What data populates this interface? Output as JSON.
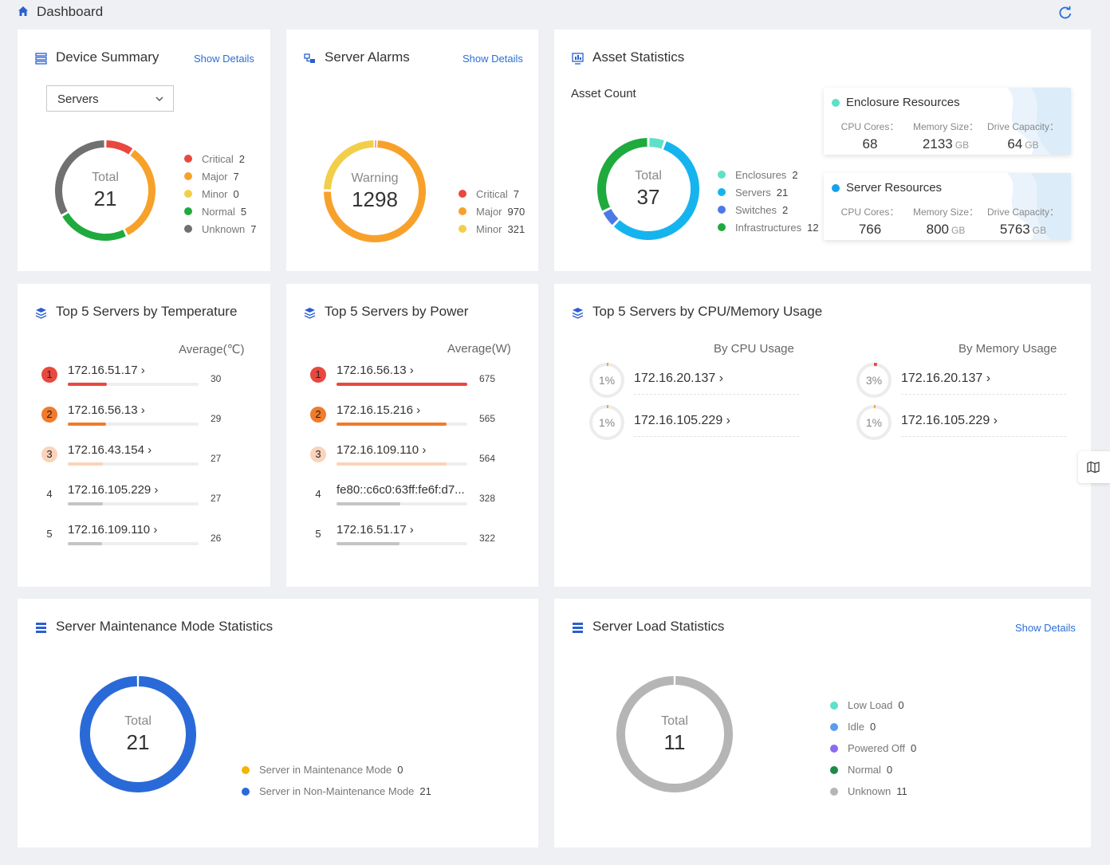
{
  "header": {
    "title": "Dashboard",
    "home_icon": "home-icon",
    "refresh_icon": "refresh-icon"
  },
  "device_summary": {
    "title": "Device Summary",
    "show_details": "Show Details",
    "dropdown_value": "Servers",
    "donut": {
      "label": "Total",
      "value": "21"
    },
    "legend": [
      {
        "label": "Critical",
        "value": "2",
        "color": "#e8483f"
      },
      {
        "label": "Major",
        "value": "7",
        "color": "#f7a12b"
      },
      {
        "label": "Minor",
        "value": "0",
        "color": "#f2cf4a"
      },
      {
        "label": "Normal",
        "value": "5",
        "color": "#1faa3e"
      },
      {
        "label": "Unknown",
        "value": "7",
        "color": "#707070"
      }
    ]
  },
  "server_alarms": {
    "title": "Server Alarms",
    "show_details": "Show Details",
    "donut": {
      "label": "Warning",
      "value": "1298"
    },
    "legend": [
      {
        "label": "Critical",
        "value": "7",
        "color": "#e8483f"
      },
      {
        "label": "Major",
        "value": "970",
        "color": "#f7a12b"
      },
      {
        "label": "Minor",
        "value": "321",
        "color": "#f2cf4a"
      }
    ]
  },
  "asset_statistics": {
    "title": "Asset Statistics",
    "subtitle": "Asset Count",
    "donut": {
      "label": "Total",
      "value": "37"
    },
    "legend": [
      {
        "label": "Enclosures",
        "value": "2",
        "color": "#5fe0c8"
      },
      {
        "label": "Servers",
        "value": "21",
        "color": "#16b4ee"
      },
      {
        "label": "Switches",
        "value": "2",
        "color": "#4d79e6"
      },
      {
        "label": "Infrastructures",
        "value": "12",
        "color": "#1faa3e"
      }
    ],
    "enclosure_resources": {
      "title": "Enclosure Resources",
      "color": "#5fe0c8",
      "cpu_label": "CPU Cores：",
      "cpu_value": "68",
      "mem_label": "Memory Size：",
      "mem_value": "2133",
      "mem_unit": "GB",
      "drive_label": "Drive Capacity：",
      "drive_value": "64",
      "drive_unit": "GB"
    },
    "server_resources": {
      "title": "Server Resources",
      "color": "#16a0f0",
      "cpu_label": "CPU Cores：",
      "cpu_value": "766",
      "mem_label": "Memory Size：",
      "mem_value": "800",
      "mem_unit": "GB",
      "drive_label": "Drive Capacity：",
      "drive_value": "5763",
      "drive_unit": "GB"
    }
  },
  "top_temperature": {
    "title": "Top 5 Servers by Temperature",
    "column": "Average(℃)",
    "rows": [
      {
        "rank": "1",
        "ip": "172.16.51.17 ›",
        "value": "30",
        "level": 0.3
      },
      {
        "rank": "2",
        "ip": "172.16.56.13 ›",
        "value": "29",
        "level": 0.29
      },
      {
        "rank": "3",
        "ip": "172.16.43.154 ›",
        "value": "27",
        "level": 0.27
      },
      {
        "rank": "4",
        "ip": "172.16.105.229 ›",
        "value": "27",
        "level": 0.27
      },
      {
        "rank": "5",
        "ip": "172.16.109.110 ›",
        "value": "26",
        "level": 0.26
      }
    ]
  },
  "top_power": {
    "title": "Top 5 Servers by Power",
    "column": "Average(W)",
    "rows": [
      {
        "rank": "1",
        "ip": "172.16.56.13 ›",
        "value": "675",
        "level": 1.0
      },
      {
        "rank": "2",
        "ip": "172.16.15.216 ›",
        "value": "565",
        "level": 0.84
      },
      {
        "rank": "3",
        "ip": "172.16.109.110 ›",
        "value": "564",
        "level": 0.84
      },
      {
        "rank": "4",
        "ip": "fe80::c6c0:63ff:fe6f:d7...",
        "value": "328",
        "level": 0.49
      },
      {
        "rank": "5",
        "ip": "172.16.51.17 ›",
        "value": "322",
        "level": 0.48
      }
    ]
  },
  "top_usage": {
    "title": "Top 5 Servers by CPU/Memory Usage",
    "cpu_head": "By CPU Usage",
    "mem_head": "By Memory Usage",
    "cpu_rows": [
      {
        "pct": "1%",
        "ip": "172.16.20.137 ›",
        "level": 0.01
      },
      {
        "pct": "1%",
        "ip": "172.16.105.229 ›",
        "level": 0.01
      }
    ],
    "mem_rows": [
      {
        "pct": "3%",
        "ip": "172.16.20.137 ›",
        "level": 0.03
      },
      {
        "pct": "1%",
        "ip": "172.16.105.229 ›",
        "level": 0.01
      }
    ]
  },
  "maintenance": {
    "title": "Server Maintenance Mode Statistics",
    "donut": {
      "label": "Total",
      "value": "21"
    },
    "legend": [
      {
        "label": "Server in Maintenance Mode",
        "value": "0",
        "color": "#f4b400"
      },
      {
        "label": "Server in Non-Maintenance Mode",
        "value": "21",
        "color": "#2a6ad8"
      }
    ]
  },
  "load": {
    "title": "Server Load Statistics",
    "show_details": "Show Details",
    "donut": {
      "label": "Total",
      "value": "11"
    },
    "legend": [
      {
        "label": "Low Load",
        "value": "0",
        "color": "#5fe0c8"
      },
      {
        "label": "Idle",
        "value": "0",
        "color": "#5b9cf0"
      },
      {
        "label": "Powered Off",
        "value": "0",
        "color": "#8a6cf0"
      },
      {
        "label": "Normal",
        "value": "0",
        "color": "#1e8a4a"
      },
      {
        "label": "Unknown",
        "value": "11",
        "color": "#b5b5b5"
      }
    ]
  },
  "side_button": {
    "icon": "map-icon"
  }
}
